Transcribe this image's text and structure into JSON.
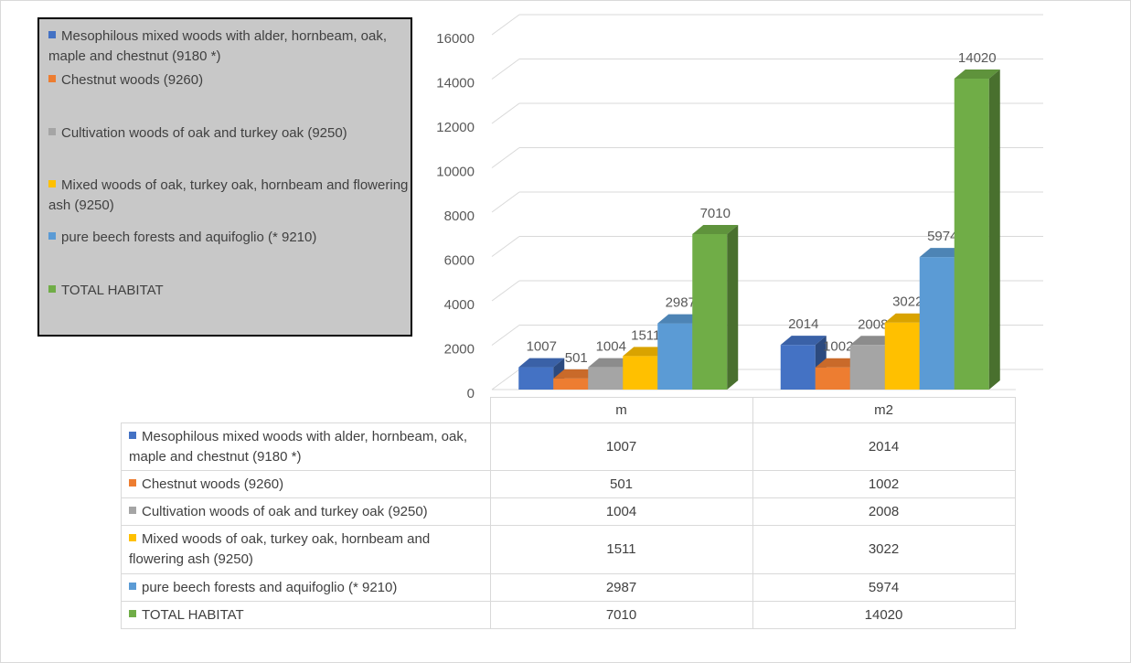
{
  "chart_data": {
    "type": "bar3d",
    "categories": [
      "m",
      "m2"
    ],
    "series": [
      {
        "name": "Mesophilous mixed woods with alder, hornbeam, oak, maple and chestnut (9180 *)",
        "color": "#4472c4",
        "values": [
          1007,
          2014
        ]
      },
      {
        "name": "Chestnut woods (9260)",
        "color": "#ed7d31",
        "values": [
          501,
          1002
        ]
      },
      {
        "name": "Cultivation woods of oak and turkey oak (9250)",
        "color": "#a5a5a5",
        "values": [
          1004,
          2008
        ]
      },
      {
        "name": "Mixed woods of oak, turkey oak, hornbeam and flowering ash (9250)",
        "color": "#ffc000",
        "values": [
          1511,
          3022
        ]
      },
      {
        "name": "pure beech forests and aquifoglio (* 9210)",
        "color": "#5b9bd5",
        "values": [
          2987,
          5974
        ]
      },
      {
        "name": "TOTAL HABITAT",
        "color": "#70ad47",
        "values": [
          7010,
          14020
        ]
      }
    ],
    "ylim": [
      0,
      16000
    ],
    "yticks": [
      0,
      2000,
      4000,
      6000,
      8000,
      10000,
      12000,
      14000,
      16000
    ],
    "grid": true,
    "legend": "top-left",
    "data_table": true
  }
}
